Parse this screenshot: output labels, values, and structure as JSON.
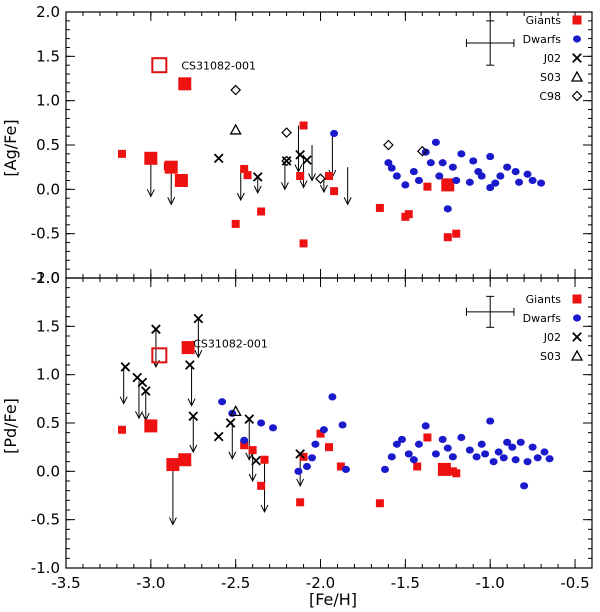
{
  "chart_data": [
    {
      "type": "scatter",
      "id": "ag",
      "ylabel": "[Ag/Fe]",
      "xlabel": "",
      "xlim": [
        -3.5,
        -0.4
      ],
      "ylim": [
        -1.0,
        2.0
      ],
      "yticks": [
        -1.0,
        -0.5,
        0.0,
        0.5,
        1.0,
        1.5,
        2.0
      ],
      "ytick_labels": [
        "-1.0",
        "-0.5",
        "0.0",
        "0.5",
        "1.0",
        "1.5",
        "2.0"
      ],
      "legend": [
        "Giants",
        "Dwarfs",
        "J02",
        "S03",
        "C98"
      ],
      "annotation": {
        "text": "CS31082-001",
        "x": -2.82,
        "y": 1.35
      },
      "error_bar": {
        "x": -1.0,
        "y": 1.65,
        "dx": 0.14,
        "dy": 0.25
      },
      "series": [
        {
          "name": "Giants",
          "marker": "square",
          "color": "#ee1111",
          "points": [
            [
              -3.17,
              0.4,
              0.8
            ],
            [
              -2.9,
              0.26,
              0.8
            ],
            [
              -2.5,
              -0.39,
              0.8
            ],
            [
              -2.45,
              0.23,
              0.8
            ],
            [
              -2.43,
              0.16,
              0.8
            ],
            [
              -2.35,
              -0.25,
              0.8
            ],
            [
              -2.12,
              0.15,
              0.8
            ],
            [
              -2.1,
              0.72,
              0.8
            ],
            [
              -2.1,
              -0.61,
              0.8
            ],
            [
              -1.95,
              0.15,
              0.8
            ],
            [
              -1.92,
              -0.02,
              0.8
            ],
            [
              -1.65,
              -0.21,
              0.8
            ],
            [
              -1.5,
              -0.31,
              0.8
            ],
            [
              -1.48,
              -0.28,
              0.8
            ],
            [
              -1.37,
              0.03,
              0.8
            ],
            [
              -1.25,
              -0.54,
              0.8
            ],
            [
              -1.2,
              -0.5,
              0.8
            ],
            [
              -3.0,
              0.35,
              1.3
            ],
            [
              -2.88,
              0.25,
              1.3
            ],
            [
              -2.82,
              0.1,
              1.3
            ],
            [
              -2.8,
              1.19,
              1.3
            ],
            [
              -1.25,
              0.05,
              1.3
            ]
          ]
        },
        {
          "name": "Dwarfs",
          "marker": "circle",
          "color": "#1a1acc",
          "points": [
            [
              -1.92,
              0.63
            ],
            [
              -1.6,
              0.3
            ],
            [
              -1.55,
              0.15
            ],
            [
              -1.5,
              0.05
            ],
            [
              -1.45,
              0.2
            ],
            [
              -1.42,
              0.1
            ],
            [
              -1.38,
              0.42
            ],
            [
              -1.32,
              0.53
            ],
            [
              -1.3,
              0.15
            ],
            [
              -1.28,
              0.3
            ],
            [
              -1.25,
              -0.22
            ],
            [
              -1.22,
              0.25
            ],
            [
              -1.2,
              0.1
            ],
            [
              -1.17,
              0.4
            ],
            [
              -1.12,
              0.08
            ],
            [
              -1.1,
              0.32
            ],
            [
              -1.07,
              0.2
            ],
            [
              -1.05,
              0.15
            ],
            [
              -1.0,
              0.02
            ],
            [
              -1.0,
              0.37
            ],
            [
              -0.97,
              0.07
            ],
            [
              -0.94,
              0.15
            ],
            [
              -0.9,
              0.25
            ],
            [
              -0.85,
              0.2
            ],
            [
              -0.83,
              0.08
            ],
            [
              -0.78,
              0.17
            ],
            [
              -0.75,
              0.1
            ],
            [
              -0.7,
              0.07
            ],
            [
              -1.35,
              0.3
            ],
            [
              -1.58,
              0.24
            ]
          ]
        },
        {
          "name": "J02",
          "marker": "x",
          "color": "#000000",
          "points": [
            [
              -2.6,
              0.35
            ],
            [
              -2.37,
              0.14
            ],
            [
              -2.2,
              0.32
            ],
            [
              -2.12,
              0.39
            ],
            [
              -2.08,
              0.33
            ]
          ]
        },
        {
          "name": "S03",
          "marker": "triangle",
          "color": "#000000",
          "points": [
            [
              -2.5,
              0.67
            ]
          ]
        },
        {
          "name": "C98",
          "marker": "diamond",
          "color": "#000000",
          "points": [
            [
              -2.5,
              1.12
            ],
            [
              -2.2,
              0.64
            ],
            [
              -2.2,
              0.32
            ],
            [
              -2.0,
              0.12
            ],
            [
              -1.6,
              0.5
            ],
            [
              -1.4,
              0.43
            ]
          ]
        },
        {
          "name": "CS31082-001",
          "marker": "open-square",
          "color": "#dd1111",
          "points": [
            [
              -2.95,
              1.4
            ]
          ]
        }
      ],
      "upper_limits": [
        [
          -3.0,
          0.33,
          -0.08
        ],
        [
          -2.88,
          0.24,
          -0.17
        ],
        [
          -2.47,
          0.23,
          -0.12
        ],
        [
          -2.37,
          0.14,
          -0.04
        ],
        [
          -2.21,
          0.32,
          0.0
        ],
        [
          -2.13,
          0.72,
          0.2
        ],
        [
          -2.1,
          0.39,
          0.02
        ],
        [
          -2.05,
          0.5,
          0.1
        ],
        [
          -1.98,
          0.12,
          -0.03
        ],
        [
          -1.93,
          0.62,
          0.14
        ],
        [
          -1.84,
          0.25,
          -0.17
        ]
      ]
    },
    {
      "type": "scatter",
      "id": "pd",
      "ylabel": "[Pd/Fe]",
      "xlabel": "[Fe/H]",
      "xlim": [
        -3.5,
        -0.4
      ],
      "ylim": [
        -1.0,
        2.0
      ],
      "xticks": [
        -3.5,
        -3.0,
        -2.5,
        -2.0,
        -1.5,
        -1.0,
        -0.5
      ],
      "xtick_labels": [
        "-3.5",
        "-3.0",
        "-2.5",
        "-2.0",
        "-1.5",
        "-1.0",
        "-0.5"
      ],
      "yticks": [
        -1.0,
        -0.5,
        0.0,
        0.5,
        1.0,
        1.5,
        2.0
      ],
      "ytick_labels": [
        "-1.0",
        "-0.5",
        "0.0",
        "0.5",
        "1.0",
        "1.5",
        "2.0"
      ],
      "legend": [
        "Giants",
        "Dwarfs",
        "J02",
        "S03"
      ],
      "annotation": {
        "text": "CS31082-001",
        "x": -2.75,
        "y": 1.28
      },
      "error_bar": {
        "x": -1.0,
        "y": 1.65,
        "dx": 0.14,
        "dy": 0.16
      },
      "series": [
        {
          "name": "Giants",
          "marker": "square",
          "color": "#ee1111",
          "points": [
            [
              -3.17,
              0.43,
              0.8
            ],
            [
              -2.45,
              0.27,
              0.8
            ],
            [
              -2.4,
              0.22,
              0.8
            ],
            [
              -2.35,
              -0.15,
              0.8
            ],
            [
              -2.33,
              0.12,
              0.8
            ],
            [
              -2.12,
              -0.32,
              0.8
            ],
            [
              -2.1,
              0.15,
              0.8
            ],
            [
              -2.0,
              0.39,
              0.8
            ],
            [
              -1.95,
              0.25,
              0.8
            ],
            [
              -1.88,
              0.05,
              0.8
            ],
            [
              -1.65,
              -0.33,
              0.8
            ],
            [
              -1.43,
              0.05,
              0.8
            ],
            [
              -1.37,
              0.35,
              0.8
            ],
            [
              -1.22,
              0.0,
              0.8
            ],
            [
              -1.2,
              -0.02,
              0.8
            ],
            [
              -3.0,
              0.47,
              1.3
            ],
            [
              -2.87,
              0.07,
              1.3
            ],
            [
              -2.8,
              0.12,
              1.3
            ],
            [
              -2.78,
              1.28,
              1.3
            ],
            [
              -1.27,
              0.02,
              1.3
            ]
          ]
        },
        {
          "name": "Dwarfs",
          "marker": "circle",
          "color": "#1a1acc",
          "points": [
            [
              -2.58,
              0.72
            ],
            [
              -2.52,
              0.6
            ],
            [
              -2.45,
              0.32
            ],
            [
              -2.35,
              0.5
            ],
            [
              -2.28,
              0.45
            ],
            [
              -2.13,
              0.0
            ],
            [
              -2.08,
              0.05
            ],
            [
              -2.05,
              0.14
            ],
            [
              -2.03,
              0.28
            ],
            [
              -1.98,
              0.43
            ],
            [
              -1.93,
              0.77
            ],
            [
              -1.87,
              0.48
            ],
            [
              -1.85,
              0.02
            ],
            [
              -1.55,
              0.28
            ],
            [
              -1.52,
              0.33
            ],
            [
              -1.48,
              0.18
            ],
            [
              -1.45,
              0.12
            ],
            [
              -1.42,
              0.28
            ],
            [
              -1.38,
              0.47
            ],
            [
              -1.32,
              0.18
            ],
            [
              -1.28,
              0.33
            ],
            [
              -1.25,
              0.24
            ],
            [
              -1.22,
              0.15
            ],
            [
              -1.17,
              0.35
            ],
            [
              -1.12,
              0.22
            ],
            [
              -1.08,
              0.15
            ],
            [
              -1.05,
              0.28
            ],
            [
              -1.03,
              0.18
            ],
            [
              -1.0,
              0.52
            ],
            [
              -0.98,
              0.1
            ],
            [
              -0.95,
              0.2
            ],
            [
              -0.92,
              0.14
            ],
            [
              -0.9,
              0.3
            ],
            [
              -0.87,
              0.25
            ],
            [
              -0.85,
              0.12
            ],
            [
              -0.82,
              0.3
            ],
            [
              -0.8,
              -0.15
            ],
            [
              -0.78,
              0.1
            ],
            [
              -0.75,
              0.25
            ],
            [
              -0.72,
              0.14
            ],
            [
              -0.68,
              0.2
            ],
            [
              -0.65,
              0.13
            ],
            [
              -1.58,
              0.15
            ],
            [
              -1.62,
              0.02
            ]
          ]
        },
        {
          "name": "J02",
          "marker": "x",
          "color": "#000000",
          "points": [
            [
              -3.15,
              1.08
            ],
            [
              -3.08,
              0.97
            ],
            [
              -3.05,
              0.92
            ],
            [
              -3.03,
              0.83
            ],
            [
              -2.97,
              1.47
            ],
            [
              -2.77,
              1.1
            ],
            [
              -2.75,
              0.57
            ],
            [
              -2.72,
              1.58
            ],
            [
              -2.6,
              0.36
            ],
            [
              -2.53,
              0.5
            ],
            [
              -2.42,
              0.54
            ],
            [
              -2.38,
              0.11
            ],
            [
              -2.12,
              0.18
            ]
          ]
        },
        {
          "name": "S03",
          "marker": "triangle",
          "color": "#000000",
          "points": [
            [
              -2.5,
              0.62
            ]
          ]
        },
        {
          "name": "CS31082-001",
          "marker": "open-square",
          "color": "#dd1111",
          "points": [
            [
              -2.95,
              1.2
            ]
          ]
        }
      ],
      "upper_limits": [
        [
          -3.16,
          1.08,
          0.7
        ],
        [
          -3.07,
          0.93,
          0.55
        ],
        [
          -3.03,
          0.83,
          0.53
        ],
        [
          -2.97,
          1.47,
          1.08
        ],
        [
          -2.87,
          0.07,
          -0.55
        ],
        [
          -2.76,
          1.08,
          0.68
        ],
        [
          -2.75,
          0.57,
          0.2
        ],
        [
          -2.72,
          1.58,
          1.18
        ],
        [
          -2.52,
          0.5,
          0.13
        ],
        [
          -2.42,
          0.54,
          0.12
        ],
        [
          -2.4,
          0.25,
          -0.1
        ],
        [
          -2.33,
          0.12,
          -0.42
        ],
        [
          -2.12,
          0.18,
          -0.15
        ]
      ]
    }
  ]
}
